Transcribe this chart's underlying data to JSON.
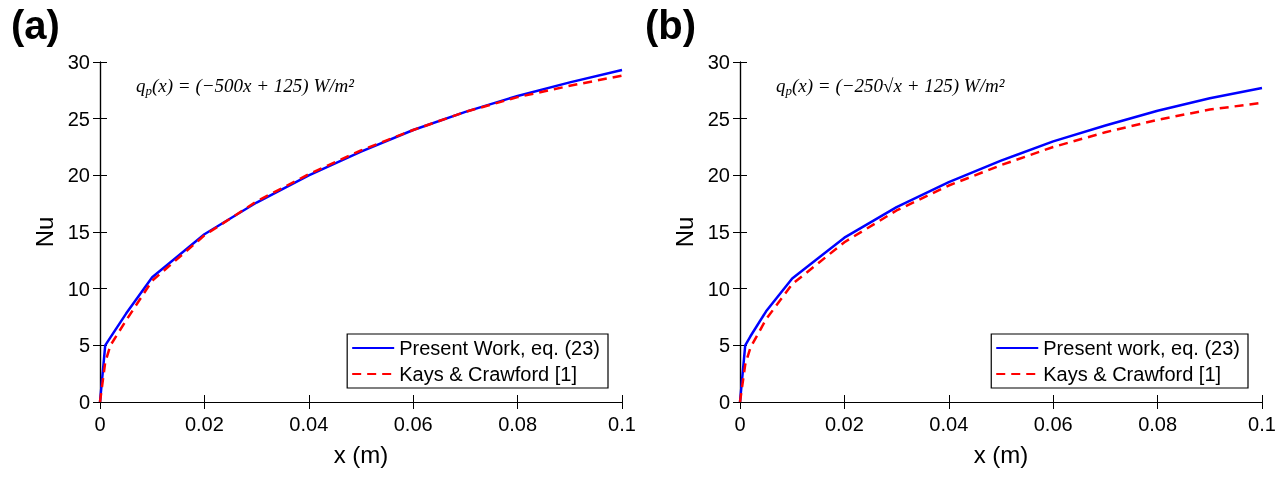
{
  "chart_data": [
    {
      "type": "line",
      "title": "(a)",
      "xlabel": "x (m)",
      "ylabel": "Nu",
      "annotations": [
        "q$_{p}$(x) = (−500x + 125) W/m²"
      ],
      "x": [
        0,
        0.001,
        0.002,
        0.005,
        0.01,
        0.02,
        0.03,
        0.04,
        0.05,
        0.06,
        0.07,
        0.08,
        0.09,
        0.1
      ],
      "series": [
        {
          "name": "Present Work, eq. (23)",
          "color": "#0000ff",
          "line_style": "solid",
          "values": [
            0,
            5,
            5.7,
            7.8,
            11,
            14.8,
            17.6,
            20,
            22.1,
            24,
            25.6,
            27,
            28.2,
            29.3
          ]
        },
        {
          "name": "Kays & Crawford [1]",
          "color": "#ff0000",
          "line_style": "dashed",
          "values": [
            0,
            3.5,
            5,
            7.2,
            10.7,
            14.7,
            17.7,
            20.1,
            22.2,
            24,
            25.6,
            26.9,
            27.9,
            28.8
          ]
        }
      ],
      "xlim": [
        0,
        0.1
      ],
      "xticks": [
        0,
        0.02,
        0.04,
        0.06,
        0.08,
        0.1
      ],
      "ylim": [
        0,
        30
      ],
      "yticks": [
        0,
        5,
        10,
        15,
        20,
        25,
        30
      ],
      "grid": false,
      "legend": "bottom right",
      "marker": "none"
    },
    {
      "type": "line",
      "title": "(b)",
      "xlabel": "x (m)",
      "ylabel": "Nu",
      "annotations": [
        "q$_{p}$(x) = (−250√x + 125) W/m²"
      ],
      "x": [
        0,
        0.001,
        0.002,
        0.005,
        0.01,
        0.02,
        0.03,
        0.04,
        0.05,
        0.06,
        0.07,
        0.08,
        0.09,
        0.1
      ],
      "series": [
        {
          "name": "Present work, eq. (23)",
          "color": "#0000ff",
          "line_style": "solid",
          "values": [
            0,
            5,
            5.8,
            8,
            10.9,
            14.5,
            17.2,
            19.4,
            21.3,
            23,
            24.4,
            25.7,
            26.8,
            27.7
          ]
        },
        {
          "name": "Kays & Crawford [1]",
          "color": "#ff0000",
          "line_style": "dashed",
          "values": [
            0,
            3.3,
            4.8,
            7.3,
            10.4,
            14.1,
            16.9,
            19.1,
            20.9,
            22.5,
            23.8,
            24.9,
            25.8,
            26.4
          ]
        }
      ],
      "xlim": [
        0,
        0.1
      ],
      "xticks": [
        0,
        0.02,
        0.04,
        0.06,
        0.08,
        0.1
      ],
      "ylim": [
        0,
        30
      ],
      "yticks": [
        0,
        5,
        10,
        15,
        20,
        25,
        30
      ],
      "grid": false,
      "legend": "bottom right",
      "marker": "none"
    }
  ]
}
